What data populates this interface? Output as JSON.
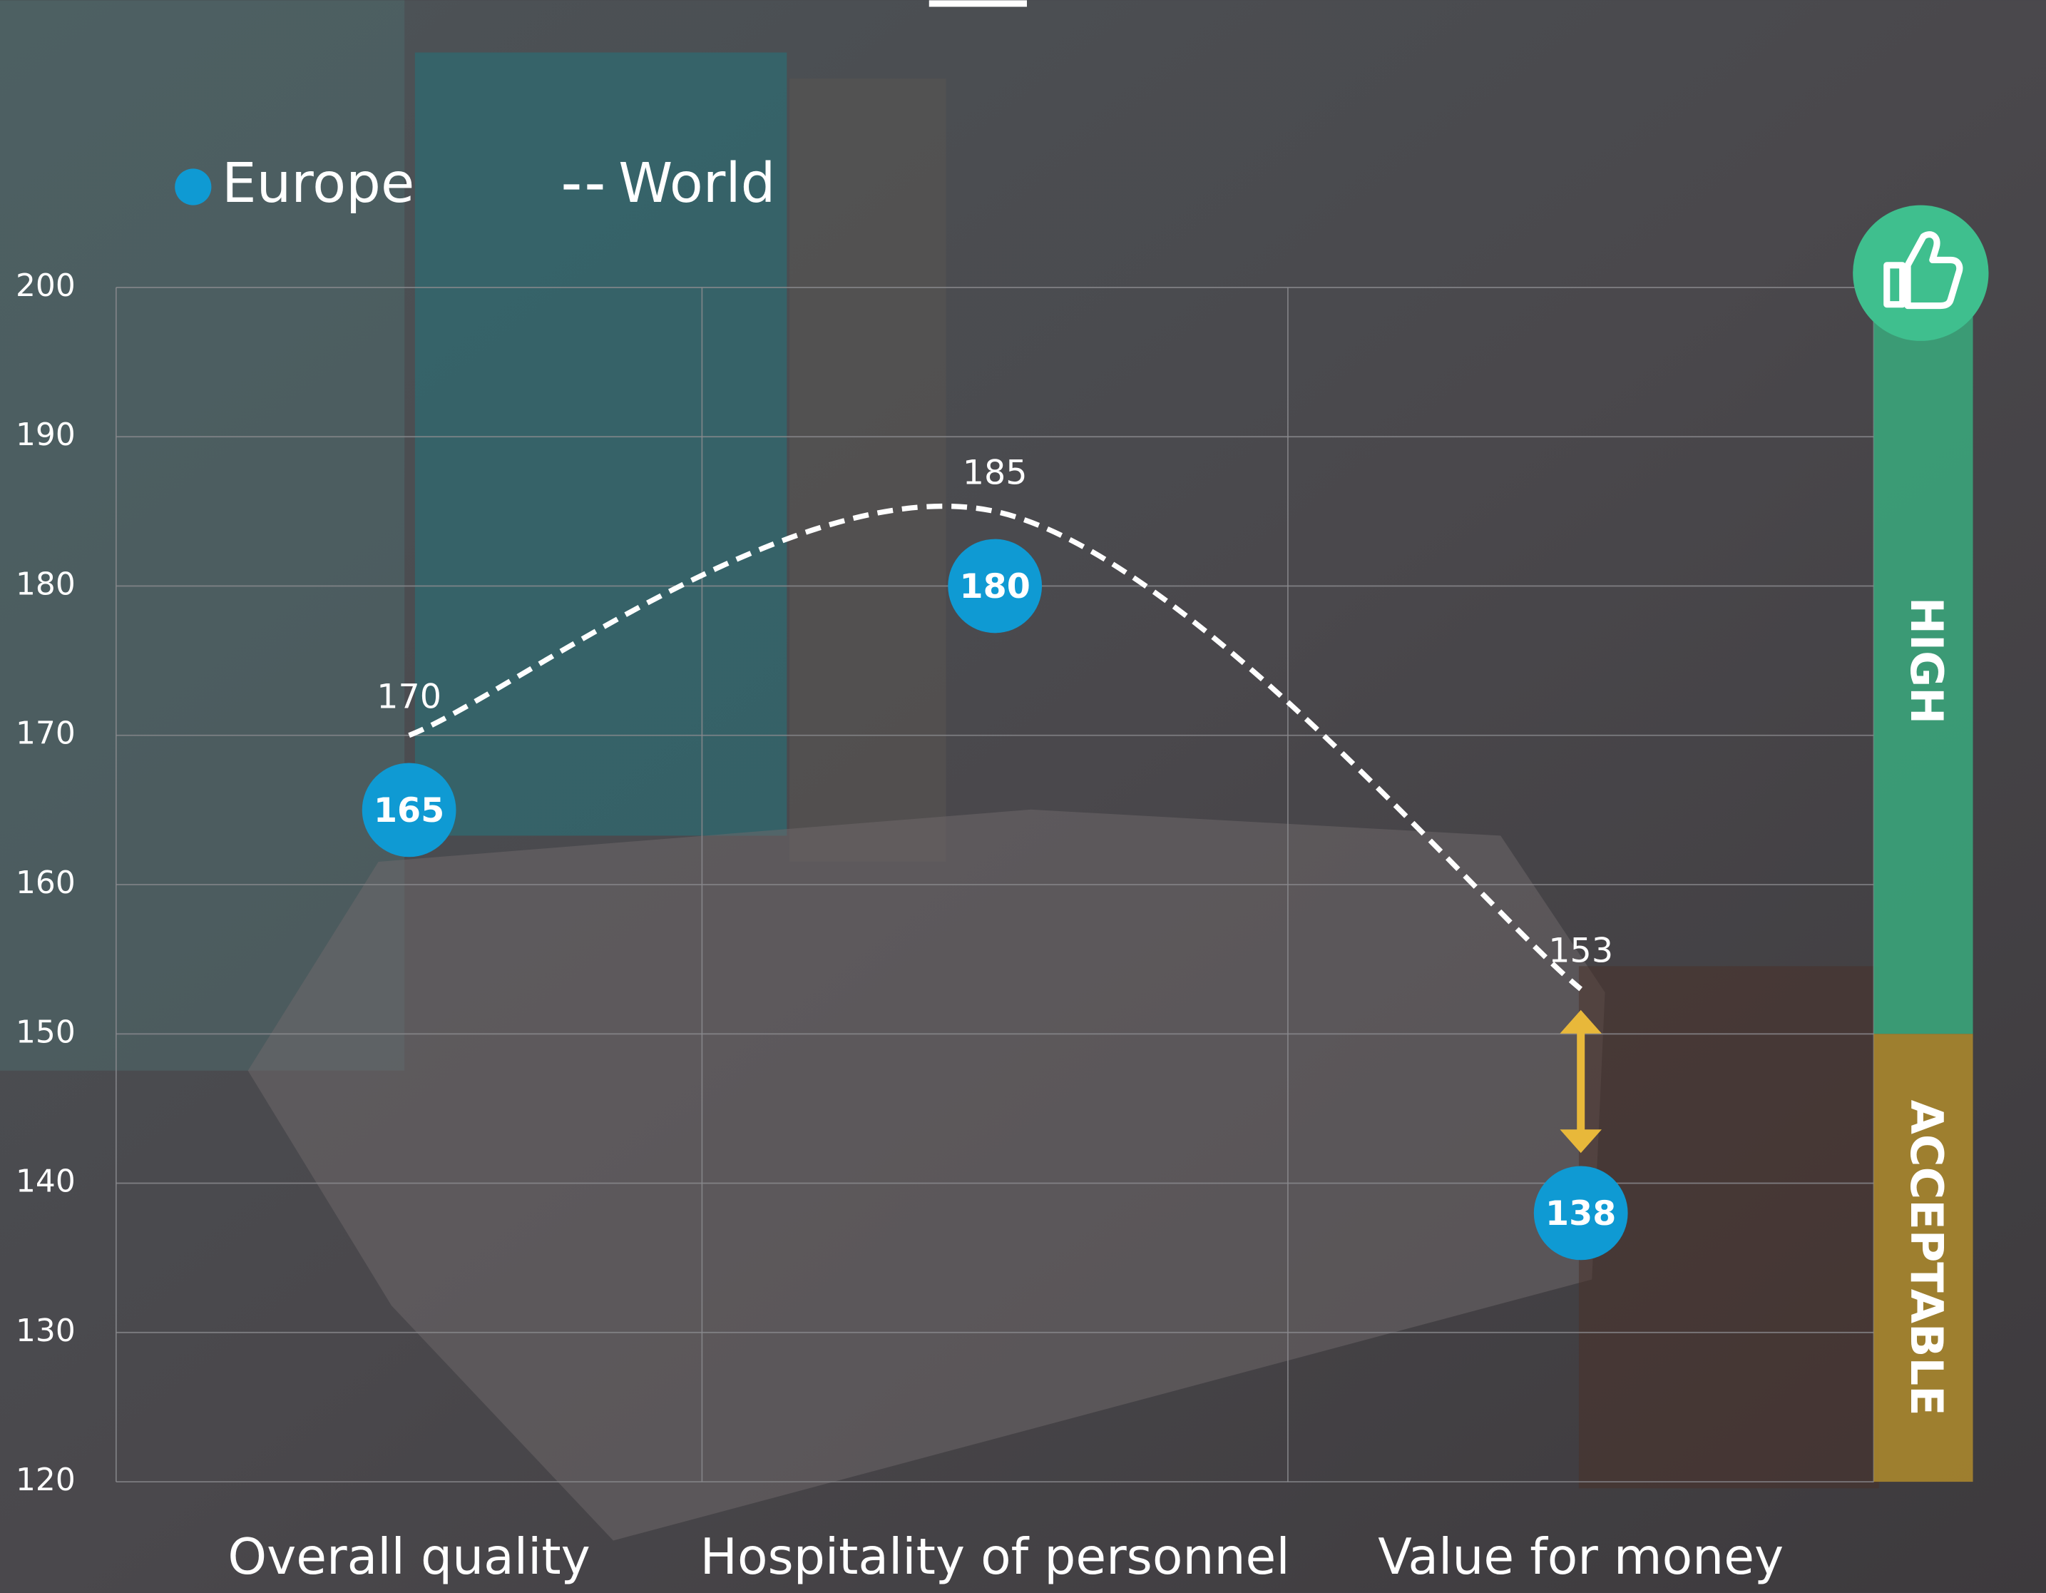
{
  "chart_data": {
    "type": "line",
    "categories": [
      "Overall quality",
      "Hospitality of personnel",
      "Value for money"
    ],
    "series": [
      {
        "name": "Europe",
        "color": "#0f9ad3",
        "values": [
          165,
          180,
          138
        ]
      },
      {
        "name": "World",
        "color": "#ffffff",
        "values": [
          170,
          185,
          153
        ]
      }
    ],
    "ylim": [
      120,
      200
    ],
    "yticks": [
      120,
      130,
      140,
      150,
      160,
      170,
      180,
      190,
      200
    ],
    "grid": true,
    "bands": [
      {
        "label": "HIGH",
        "from": 150,
        "to": 200,
        "color": "#3aa47a"
      },
      {
        "label": "ACCEPTABLE",
        "from": 120,
        "to": 150,
        "color": "#a8862e"
      }
    ]
  }
}
